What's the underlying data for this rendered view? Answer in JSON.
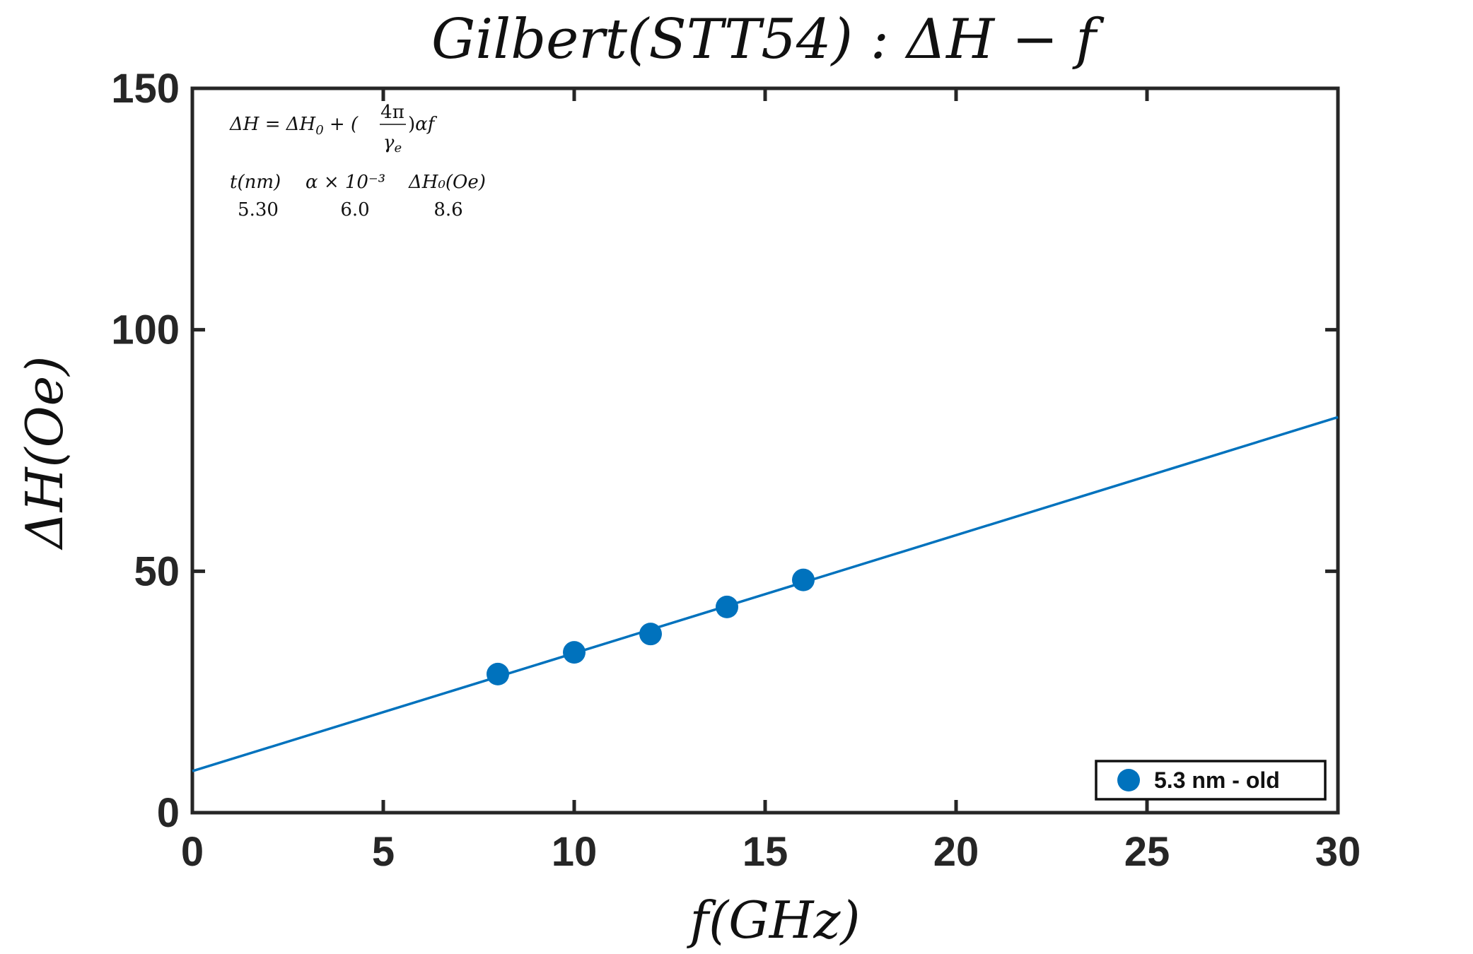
{
  "chart_data": {
    "type": "scatter",
    "title": "Gilbert(STT54) : ΔH − f",
    "xlabel": "f(GHz)",
    "ylabel": "ΔH(Oe)",
    "xlim": [
      0,
      30
    ],
    "ylim": [
      0,
      150
    ],
    "x_ticks": [
      "0",
      "5",
      "10",
      "15",
      "20",
      "25",
      "30"
    ],
    "y_ticks": [
      "0",
      "50",
      "100",
      "150"
    ],
    "grid": false,
    "legend_position": "bottom-right",
    "series": [
      {
        "name": "5.3 nm - old",
        "type": "scatter",
        "color": "#0072bd",
        "x": [
          8,
          10,
          12,
          14,
          16
        ],
        "y": [
          28.7,
          33.2,
          37.0,
          42.6,
          48.2
        ]
      }
    ],
    "fit_line": {
      "color": "#0072bd",
      "x": [
        0,
        30
      ],
      "y": [
        8.6,
        81.9
      ]
    },
    "annotation": {
      "formula": "ΔH = ΔH₀ + (4π/γₑ)αf",
      "headers": [
        "t(nm)",
        "α × 10⁻³",
        "ΔH₀(Oe)"
      ],
      "values": [
        "5.30",
        "6.0",
        "8.6"
      ]
    }
  }
}
